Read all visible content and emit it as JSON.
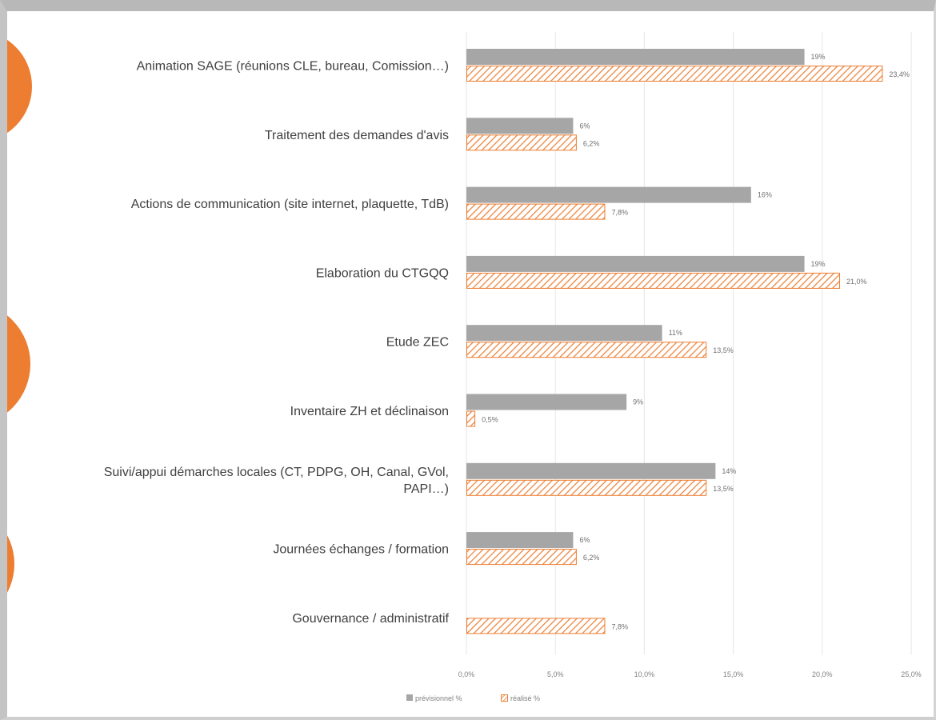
{
  "colors": {
    "forecast_bar": "#a6a6a6",
    "actual_hatch": "#ed7d31",
    "accent_circle": "#ed7d31",
    "gridline": "#e6e6e6"
  },
  "chart_data": {
    "type": "bar",
    "orientation": "horizontal",
    "categories": [
      [
        "Animation SAGE (réunions CLE, bureau, Comission…)"
      ],
      [
        "Traitement des demandes d'avis"
      ],
      [
        "Actions de communication (site internet, plaquette, TdB)"
      ],
      [
        "Elaboration du CTGQQ"
      ],
      [
        "Etude ZEC"
      ],
      [
        "Inventaire ZH et déclinaison"
      ],
      [
        "Suivi/appui démarches locales (CT, PDPG, OH, Canal, GVol,",
        "PAPI…)"
      ],
      [
        "Journées échanges / formation"
      ],
      [
        "Gouvernance / administratif"
      ]
    ],
    "series": [
      {
        "name": "prévisionnel %",
        "values": [
          19,
          6,
          16,
          19,
          11,
          9,
          14,
          6,
          null
        ],
        "data_labels": [
          "19%",
          "6%",
          "16%",
          "19%",
          "11%",
          "9%",
          "14%",
          "6%",
          null
        ],
        "style": "solid"
      },
      {
        "name": "réalisé %",
        "values": [
          23.4,
          6.2,
          7.8,
          21.0,
          13.5,
          0.5,
          13.5,
          6.2,
          7.8
        ],
        "data_labels": [
          "23,4%",
          "6,2%",
          "7,8%",
          "21,0%",
          "13,5%",
          "0,5%",
          "13,5%",
          "6,2%",
          "7,8%"
        ],
        "style": "hatched"
      }
    ],
    "xlim": [
      0,
      25
    ],
    "x_ticks": [
      0,
      5,
      10,
      15,
      20,
      25
    ],
    "x_tick_labels": [
      "0,0%",
      "5,0%",
      "10,0%",
      "15,0%",
      "20,0%",
      "25,0%"
    ],
    "grid": "vertical",
    "legend_position": "bottom-left",
    "title": "",
    "xlabel": "",
    "ylabel": ""
  }
}
